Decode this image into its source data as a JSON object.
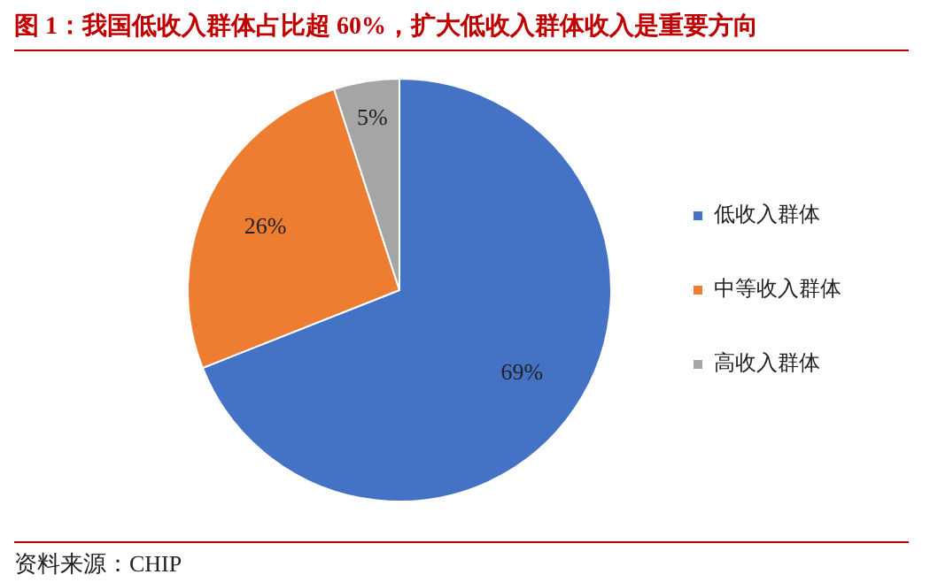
{
  "chart_data": {
    "type": "pie",
    "title": "图 1：我国低收入群体占比超 60%，扩大低收入群体收入是重要方向",
    "categories": [
      "低收入群体",
      "中等收入群体",
      "高收入群体"
    ],
    "values": [
      69,
      26,
      5
    ],
    "value_labels": [
      "69%",
      "26%",
      "5%"
    ],
    "colors": [
      "#4472c4",
      "#ed7d31",
      "#a5a5a5"
    ],
    "legend": "right",
    "annotations": [
      "资料来源：CHIP"
    ]
  }
}
